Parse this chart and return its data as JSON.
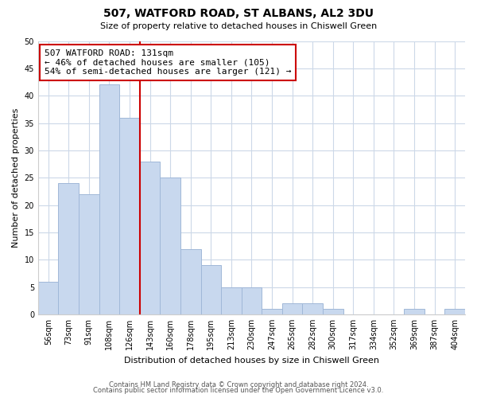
{
  "title": "507, WATFORD ROAD, ST ALBANS, AL2 3DU",
  "subtitle": "Size of property relative to detached houses in Chiswell Green",
  "xlabel": "Distribution of detached houses by size in Chiswell Green",
  "ylabel": "Number of detached properties",
  "bar_labels": [
    "56sqm",
    "73sqm",
    "91sqm",
    "108sqm",
    "126sqm",
    "143sqm",
    "160sqm",
    "178sqm",
    "195sqm",
    "213sqm",
    "230sqm",
    "247sqm",
    "265sqm",
    "282sqm",
    "300sqm",
    "317sqm",
    "334sqm",
    "352sqm",
    "369sqm",
    "387sqm",
    "404sqm"
  ],
  "bar_values": [
    6,
    24,
    22,
    42,
    36,
    28,
    25,
    12,
    9,
    5,
    5,
    1,
    2,
    2,
    1,
    0,
    0,
    0,
    1,
    0,
    1
  ],
  "ylim": [
    0,
    50
  ],
  "yticks": [
    0,
    5,
    10,
    15,
    20,
    25,
    30,
    35,
    40,
    45,
    50
  ],
  "bar_color": "#c8d8ee",
  "bar_edge_color": "#a0b8d8",
  "vline_color": "#cc0000",
  "vline_bar_index": 4,
  "annotation_text": "507 WATFORD ROAD: 131sqm\n← 46% of detached houses are smaller (105)\n54% of semi-detached houses are larger (121) →",
  "annotation_box_color": "#ffffff",
  "annotation_box_edge": "#cc0000",
  "footer_line1": "Contains HM Land Registry data © Crown copyright and database right 2024.",
  "footer_line2": "Contains public sector information licensed under the Open Government Licence v3.0.",
  "background_color": "#ffffff",
  "grid_color": "#ccd8e8",
  "title_fontsize": 10,
  "subtitle_fontsize": 8,
  "ylabel_fontsize": 8,
  "xlabel_fontsize": 8,
  "tick_fontsize": 7,
  "footer_fontsize": 6,
  "annot_fontsize": 8
}
